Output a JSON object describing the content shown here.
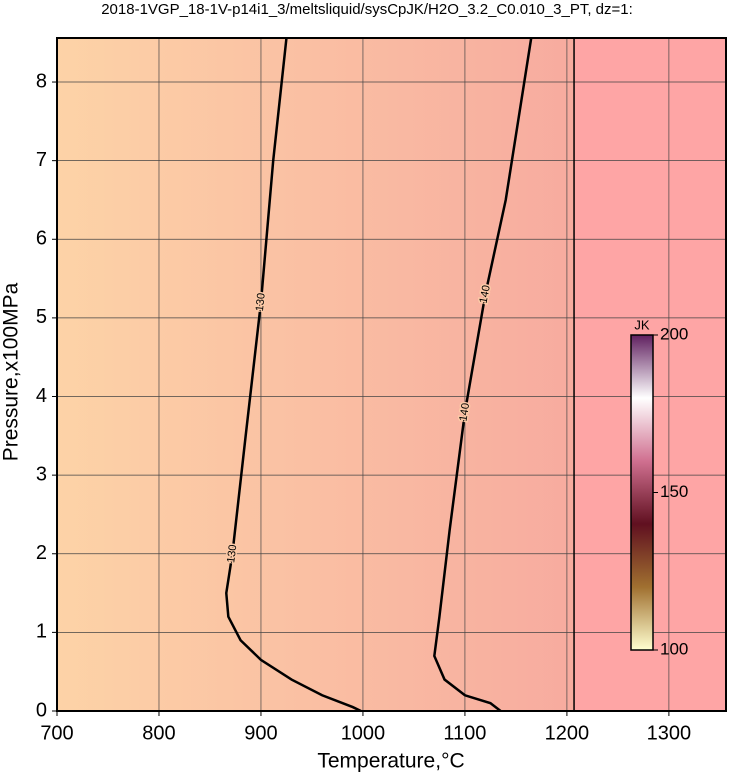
{
  "chart_data": {
    "type": "contour",
    "title": "2018-1VGP_18-1V-p14i1_3/meltsliquid/sysCpJK/H2O_3.2_C0.010_3_PT, dz=1:",
    "x_label": "Temperature,°C",
    "y_label": "Pressure,x100MPa",
    "xlim": [
      700,
      1356
    ],
    "ylim": [
      0,
      8.56
    ],
    "xticks": [
      700,
      800,
      900,
      1000,
      1100,
      1200,
      1300
    ],
    "yticks": [
      0,
      1,
      2,
      3,
      4,
      5,
      6,
      7,
      8
    ],
    "grid": true,
    "background_colors": [
      "#fdd3a7",
      "#f7ab9f",
      "#fea5a5"
    ],
    "phase_boundary_x": 1207,
    "series": [
      {
        "name": "130",
        "color": "#000000",
        "x": [
          925,
          912,
          900,
          885,
          872,
          866,
          868,
          880,
          900,
          930,
          960,
          990,
          998
        ],
        "y": [
          8.56,
          7,
          5.2,
          3.5,
          2,
          1.5,
          1.2,
          0.9,
          0.65,
          0.4,
          0.2,
          0.05,
          0
        ]
      },
      {
        "name": "140",
        "color": "#000000",
        "x": [
          1165,
          1140,
          1120,
          1100,
          1085,
          1075,
          1070,
          1080,
          1100,
          1125,
          1135
        ],
        "y": [
          8.56,
          6.5,
          5.3,
          3.8,
          2.3,
          1.2,
          0.7,
          0.4,
          0.2,
          0.1,
          0
        ]
      }
    ],
    "colorbar": {
      "label": "JK",
      "lim": [
        100,
        200
      ],
      "ticks": [
        100,
        150,
        200
      ],
      "colors": [
        "#ffffd0",
        "#a07030",
        "#601020",
        "#d07090",
        "#ffffff",
        "#602060"
      ]
    }
  }
}
